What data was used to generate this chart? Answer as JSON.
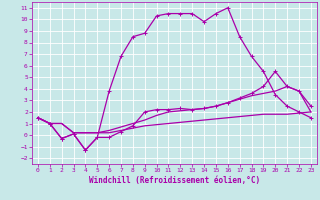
{
  "xlabel": "Windchill (Refroidissement éolien,°C)",
  "xlim": [
    -0.5,
    23.5
  ],
  "ylim": [
    -2.5,
    11.5
  ],
  "xticks": [
    0,
    1,
    2,
    3,
    4,
    5,
    6,
    7,
    8,
    9,
    10,
    11,
    12,
    13,
    14,
    15,
    16,
    17,
    18,
    19,
    20,
    21,
    22,
    23
  ],
  "yticks": [
    -2,
    -1,
    0,
    1,
    2,
    3,
    4,
    5,
    6,
    7,
    8,
    9,
    10,
    11
  ],
  "bg_color": "#c8e8e8",
  "grid_color": "#ffffff",
  "line_color": "#aa00aa",
  "line1_x": [
    0,
    1,
    2,
    3,
    4,
    5,
    6,
    7,
    8,
    9,
    10,
    11,
    12,
    13,
    14,
    15,
    16,
    17,
    18,
    19,
    20,
    21,
    22,
    23
  ],
  "line1_y": [
    1.5,
    1.0,
    1.0,
    0.2,
    0.2,
    0.2,
    0.2,
    0.4,
    0.6,
    0.8,
    0.9,
    1.0,
    1.1,
    1.2,
    1.3,
    1.4,
    1.5,
    1.6,
    1.7,
    1.8,
    1.8,
    1.8,
    1.9,
    2.0
  ],
  "line2_x": [
    0,
    1,
    2,
    3,
    4,
    5,
    6,
    7,
    8,
    9,
    10,
    11,
    12,
    13,
    14,
    15,
    16,
    17,
    18,
    19,
    20,
    21,
    22,
    23
  ],
  "line2_y": [
    1.5,
    1.0,
    1.0,
    0.2,
    0.2,
    0.2,
    0.4,
    0.7,
    1.0,
    1.3,
    1.7,
    2.0,
    2.1,
    2.2,
    2.3,
    2.5,
    2.8,
    3.1,
    3.4,
    3.6,
    3.8,
    4.2,
    3.8,
    2.0
  ],
  "line3_x": [
    0,
    1,
    2,
    3,
    4,
    5,
    6,
    7,
    8,
    9,
    10,
    11,
    12,
    13,
    14,
    15,
    16,
    17,
    18,
    19,
    20,
    21,
    22,
    23
  ],
  "line3_y": [
    1.5,
    1.0,
    -0.3,
    0.1,
    -1.3,
    -0.2,
    -0.2,
    0.3,
    0.8,
    2.0,
    2.2,
    2.2,
    2.3,
    2.2,
    2.3,
    2.5,
    2.8,
    3.2,
    3.6,
    4.2,
    5.5,
    4.2,
    3.8,
    2.5
  ],
  "line4_x": [
    0,
    1,
    2,
    3,
    4,
    5,
    6,
    7,
    8,
    9,
    10,
    11,
    12,
    13,
    14,
    15,
    16,
    17,
    18,
    19,
    20,
    21,
    22,
    23
  ],
  "line4_y": [
    1.5,
    1.0,
    -0.3,
    0.1,
    -1.3,
    -0.2,
    3.8,
    6.8,
    8.5,
    8.8,
    10.3,
    10.5,
    10.5,
    10.5,
    9.8,
    10.5,
    11.0,
    8.5,
    6.8,
    5.5,
    3.5,
    2.5,
    2.0,
    1.5
  ],
  "tick_fontsize": 4.5,
  "xlabel_fontsize": 5.5
}
